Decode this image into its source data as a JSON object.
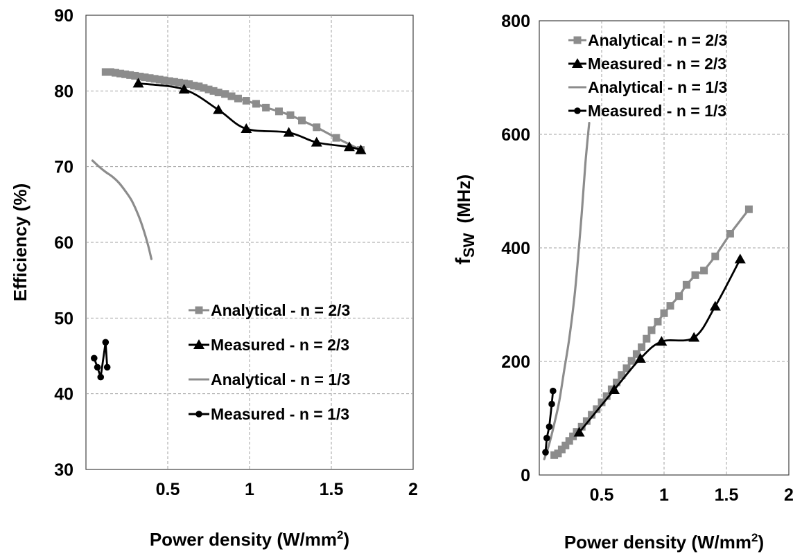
{
  "colors": {
    "analytical": "#8c8c8c",
    "measured": "#000000",
    "grid": "#a0a0a0"
  },
  "chart_data": [
    {
      "id": "efficiency",
      "type": "line",
      "xlabel": "Power density (W/mm",
      "xlabel_sup": "2",
      "xlabel_tail": ")",
      "ylabel": "Efficiency (%)",
      "xlim": [
        0,
        2
      ],
      "ylim": [
        30,
        90
      ],
      "xticks": [
        0.5,
        1,
        1.5,
        2
      ],
      "xtick_labels": [
        "0.5",
        "1",
        "1.5",
        "2"
      ],
      "yticks": [
        30,
        40,
        50,
        60,
        70,
        80,
        90
      ],
      "ytick_labels": [
        "30",
        "40",
        "50",
        "60",
        "70",
        "80",
        "90"
      ],
      "grid": "dashed",
      "legend_position": "lower-right",
      "series": [
        {
          "name": "Analytical - n = 2/3",
          "style": "analytical",
          "marker": "square",
          "smooth": false,
          "x": [
            0.12,
            0.15,
            0.18,
            0.21,
            0.24,
            0.27,
            0.3,
            0.33,
            0.36,
            0.39,
            0.42,
            0.45,
            0.48,
            0.51,
            0.54,
            0.57,
            0.6,
            0.63,
            0.66,
            0.69,
            0.72,
            0.75,
            0.78,
            0.81,
            0.85,
            0.89,
            0.93,
            0.98,
            1.04,
            1.1,
            1.18,
            1.25,
            1.32,
            1.41,
            1.53,
            1.68
          ],
          "y": [
            82.5,
            82.5,
            82.4,
            82.3,
            82.2,
            82.1,
            82.0,
            81.9,
            81.8,
            81.7,
            81.6,
            81.5,
            81.4,
            81.3,
            81.2,
            81.1,
            81.0,
            80.9,
            80.7,
            80.6,
            80.4,
            80.2,
            80.0,
            79.8,
            79.6,
            79.3,
            79.0,
            78.7,
            78.3,
            77.8,
            77.3,
            76.8,
            76.1,
            75.2,
            73.8,
            72.2
          ]
        },
        {
          "name": "Measured - n = 2/3",
          "style": "measured",
          "marker": "triangle",
          "smooth": true,
          "x": [
            0.32,
            0.6,
            0.81,
            0.98,
            1.24,
            1.41,
            1.61,
            1.68
          ],
          "y": [
            81.0,
            80.2,
            77.5,
            75.0,
            74.5,
            73.2,
            72.6,
            72.2
          ]
        },
        {
          "name": "Analytical - n = 1/3",
          "style": "analytical",
          "marker": "none",
          "smooth": true,
          "x": [
            0.04,
            0.08,
            0.12,
            0.16,
            0.2,
            0.24,
            0.28,
            0.32,
            0.35,
            0.38,
            0.4
          ],
          "y": [
            70.8,
            70.0,
            69.3,
            68.7,
            67.9,
            66.8,
            65.5,
            63.6,
            61.8,
            59.6,
            57.8
          ]
        },
        {
          "name": "Measured - n = 1/3",
          "style": "measured",
          "marker": "circle",
          "smooth": false,
          "x": [
            0.05,
            0.07,
            0.09,
            0.12,
            0.13
          ],
          "y": [
            44.7,
            43.5,
            42.2,
            46.8,
            43.5
          ]
        }
      ]
    },
    {
      "id": "fsw",
      "type": "line",
      "xlabel": "Power density (W/mm",
      "xlabel_sup": "2",
      "xlabel_tail": ")",
      "ylabel_main": "f",
      "ylabel_sub": "SW",
      "ylabel_unit": "(MHz)",
      "xlim": [
        0,
        2
      ],
      "ylim": [
        0,
        800
      ],
      "xticks": [
        0.5,
        1,
        1.5,
        2
      ],
      "xtick_labels": [
        "0.5",
        "1",
        "1.5",
        "2"
      ],
      "yticks": [
        0,
        200,
        400,
        600,
        800
      ],
      "ytick_labels": [
        "0",
        "200",
        "400",
        "600",
        "800"
      ],
      "grid": "dashed",
      "legend_position": "top-left",
      "series": [
        {
          "name": "Analytical - n = 2/3",
          "style": "analytical",
          "marker": "square",
          "smooth": false,
          "x": [
            0.12,
            0.15,
            0.18,
            0.21,
            0.24,
            0.27,
            0.3,
            0.34,
            0.38,
            0.42,
            0.46,
            0.5,
            0.54,
            0.58,
            0.62,
            0.66,
            0.7,
            0.74,
            0.78,
            0.82,
            0.86,
            0.9,
            0.95,
            1.0,
            1.05,
            1.12,
            1.18,
            1.25,
            1.32,
            1.41,
            1.53,
            1.68
          ],
          "y": [
            35,
            38,
            45,
            52,
            60,
            68,
            76,
            85,
            95,
            106,
            116,
            128,
            139,
            151,
            163,
            176,
            188,
            201,
            213,
            225,
            240,
            255,
            270,
            285,
            298,
            315,
            335,
            352,
            360,
            385,
            425,
            468
          ]
        },
        {
          "name": "Measured - n = 2/3",
          "style": "measured",
          "marker": "triangle",
          "smooth": true,
          "x": [
            0.32,
            0.6,
            0.81,
            0.98,
            1.24,
            1.41,
            1.61
          ],
          "y": [
            75,
            150,
            205,
            235,
            242,
            297,
            380
          ]
        },
        {
          "name": "Analytical - n = 1/3",
          "style": "analytical",
          "marker": "none",
          "smooth": true,
          "x": [
            0.04,
            0.08,
            0.12,
            0.16,
            0.2,
            0.24,
            0.28,
            0.31,
            0.34,
            0.37,
            0.4
          ],
          "y": [
            28,
            55,
            90,
            130,
            185,
            240,
            310,
            380,
            460,
            550,
            620
          ]
        },
        {
          "name": "Measured - n = 1/3",
          "style": "measured",
          "marker": "circle",
          "smooth": false,
          "x": [
            0.05,
            0.06,
            0.08,
            0.1,
            0.11
          ],
          "y": [
            40,
            65,
            85,
            125,
            148
          ]
        }
      ]
    }
  ]
}
